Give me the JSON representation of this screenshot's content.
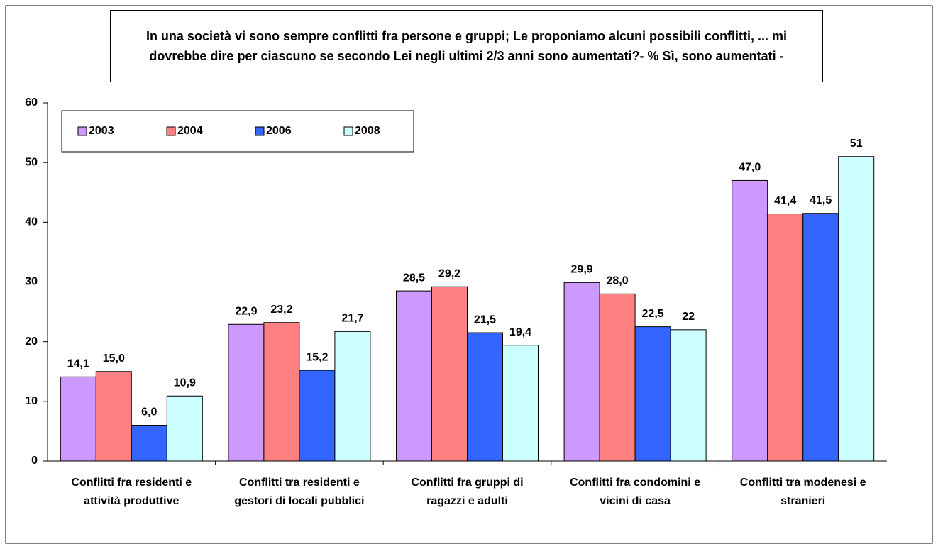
{
  "chart_data": {
    "type": "bar",
    "title": "In una società vi sono sempre conflitti fra persone e gruppi; Le proponiamo alcuni possibili conflitti, ... mi dovrebbe dire per ciascuno se secondo Lei negli ultimi 2/3 anni sono aumentati?- % Sì, sono aumentati -",
    "categories": [
      "Conflitti fra residenti e attività produttive",
      "Conflitti tra residenti e gestori di locali pubblici",
      "Conflitti fra gruppi di ragazzi e adulti",
      "Conflitti fra condomini e vicini di casa",
      "Conflitti tra modenesi e stranieri"
    ],
    "series": [
      {
        "name": "2003",
        "color": "#cc99ff",
        "values": [
          14.1,
          22.9,
          28.5,
          29.9,
          47.0
        ],
        "value_labels": [
          "14,1",
          "22,9",
          "28,5",
          "29,9",
          "47,0"
        ]
      },
      {
        "name": "2004",
        "color": "#ff8080",
        "values": [
          15.0,
          23.2,
          29.2,
          28.0,
          41.4
        ],
        "value_labels": [
          "15,0",
          "23,2",
          "29,2",
          "28,0",
          "41,4"
        ]
      },
      {
        "name": "2006",
        "color": "#3366ff",
        "values": [
          6.0,
          15.2,
          21.5,
          22.5,
          41.5
        ],
        "value_labels": [
          "6,0",
          "15,2",
          "21,5",
          "22,5",
          "41,5"
        ]
      },
      {
        "name": "2008",
        "color": "#ccffff",
        "values": [
          10.9,
          21.7,
          19.4,
          22,
          51
        ],
        "value_labels": [
          "10,9",
          "21,7",
          "19,4",
          "22",
          "51"
        ]
      }
    ],
    "ylim": [
      0,
      60
    ],
    "yticks": [
      0,
      10,
      20,
      30,
      40,
      50,
      60
    ],
    "grid": false,
    "legend": "top-left"
  }
}
